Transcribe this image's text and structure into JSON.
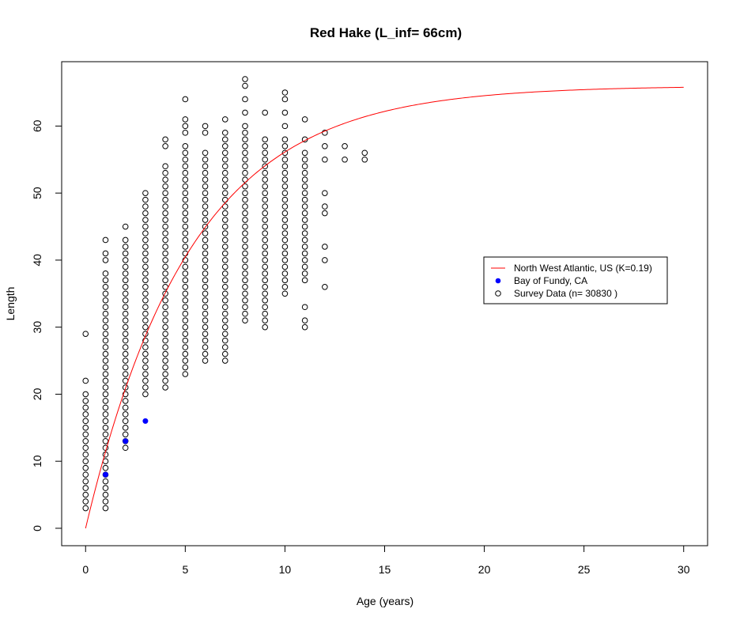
{
  "chart_data": {
    "type": "scatter",
    "title": "Red Hake (L_inf= 66cm)",
    "xlabel": "Age (years)",
    "ylabel": "Length",
    "xlim": [
      -1.2,
      31.2
    ],
    "ylim": [
      -2.6,
      69.6
    ],
    "x_ticks": [
      0,
      5,
      10,
      15,
      20,
      25,
      30
    ],
    "y_ticks": [
      0,
      10,
      20,
      30,
      40,
      50,
      60
    ],
    "grid": false,
    "legend_position": "right",
    "colors": {
      "curve": "#ff0000",
      "fundy": "#0000ff",
      "survey": "#000000"
    },
    "curve": {
      "name": "North West Atlantic, US (K=0.19)",
      "L_inf": 66,
      "K": 0.19,
      "t0": 0,
      "x_range": [
        0,
        30
      ]
    },
    "fundy": {
      "name": "Bay of Fundy, CA",
      "x": [
        1,
        2,
        3
      ],
      "y": [
        8,
        13,
        16
      ]
    },
    "survey": {
      "name": "Survey Data (n= 30830 )",
      "columns": [
        {
          "x": 0,
          "ranges": [
            [
              3,
              20
            ]
          ],
          "extra": [
            22,
            29
          ]
        },
        {
          "x": 1,
          "ranges": [
            [
              3,
              35
            ]
          ],
          "extra": [
            36,
            37,
            38,
            40,
            41,
            43
          ]
        },
        {
          "x": 2,
          "ranges": [
            [
              12,
              42
            ]
          ],
          "extra": [
            43,
            45
          ]
        },
        {
          "x": 3,
          "ranges": [
            [
              20,
              48
            ]
          ],
          "extra": [
            49,
            50
          ]
        },
        {
          "x": 4,
          "ranges": [
            [
              21,
              54
            ]
          ],
          "extra": [
            57,
            58
          ]
        },
        {
          "x": 5,
          "ranges": [
            [
              23,
              57
            ]
          ],
          "extra": [
            59,
            60,
            61,
            64
          ]
        },
        {
          "x": 6,
          "ranges": [
            [
              25,
              56
            ]
          ],
          "extra": [
            59,
            60
          ]
        },
        {
          "x": 7,
          "ranges": [
            [
              25,
              59
            ]
          ],
          "extra": [
            61
          ]
        },
        {
          "x": 8,
          "ranges": [
            [
              31,
              59
            ]
          ],
          "extra": [
            60,
            62,
            64,
            66,
            67
          ]
        },
        {
          "x": 9,
          "ranges": [
            [
              30,
              58
            ]
          ],
          "extra": [
            62
          ]
        },
        {
          "x": 10,
          "ranges": [
            [
              35,
              58
            ]
          ],
          "extra": [
            60,
            62,
            64,
            65
          ]
        },
        {
          "x": 11,
          "ranges": [
            [
              37,
              56
            ]
          ],
          "extra": [
            30,
            31,
            33,
            58,
            61
          ]
        },
        {
          "x": 12,
          "ranges": [],
          "extra": [
            36,
            40,
            42,
            47,
            48,
            50,
            55,
            57,
            59
          ]
        },
        {
          "x": 13,
          "ranges": [],
          "extra": [
            55,
            57
          ]
        },
        {
          "x": 14,
          "ranges": [],
          "extra": [
            55,
            56
          ]
        }
      ]
    }
  }
}
